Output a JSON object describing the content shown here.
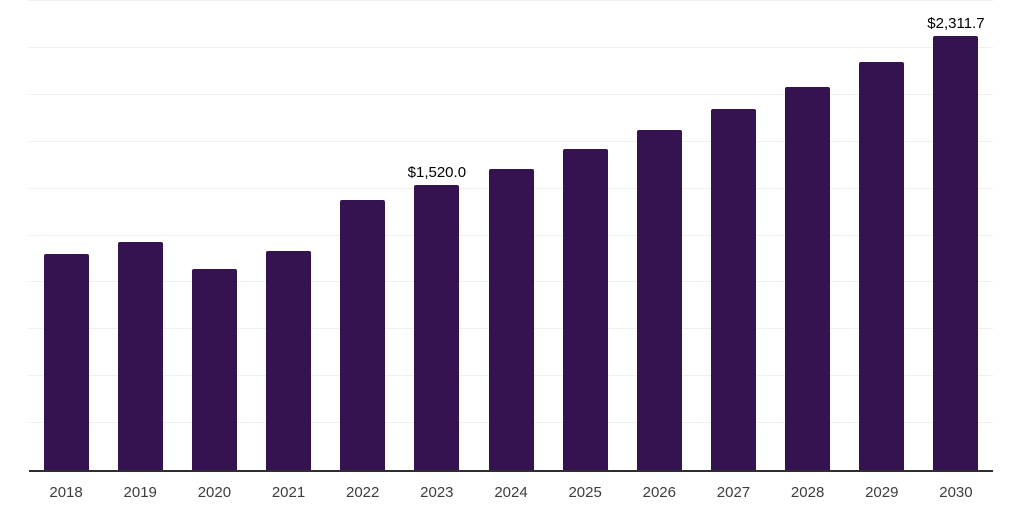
{
  "chart_data": {
    "type": "bar",
    "title": "",
    "xlabel": "",
    "ylabel": "",
    "categories": [
      "2018",
      "2019",
      "2020",
      "2021",
      "2022",
      "2023",
      "2024",
      "2025",
      "2026",
      "2027",
      "2028",
      "2029",
      "2030"
    ],
    "values": [
      1150,
      1215,
      1070,
      1165,
      1440,
      1520,
      1605,
      1710,
      1815,
      1925,
      2040,
      2175,
      2311.7
    ],
    "value_labels": [
      "",
      "",
      "",
      "",
      "",
      "$1,520.0",
      "",
      "",
      "",
      "",
      "",
      "",
      "$2,311.7"
    ],
    "ylim": [
      0,
      2500
    ],
    "grid_interval": 250,
    "grid": "horizontal",
    "legend": "none",
    "yaxis_tick_labels": "none",
    "colors": {
      "bar": "#351250",
      "gridline": "#efefef",
      "axis_line": "#2e2e2e",
      "tick_label": "#3d3d3d",
      "value_label": "#000000",
      "background": "#ffffff"
    }
  }
}
